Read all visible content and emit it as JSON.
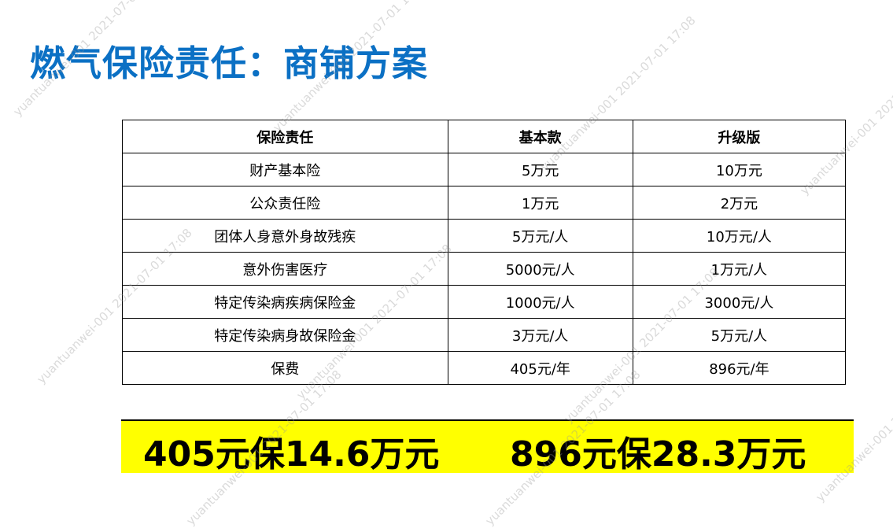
{
  "title": "燃气保险责任：商铺方案",
  "table": {
    "headers": [
      "保险责任",
      "基本款",
      "升级版"
    ],
    "rows": [
      [
        "财产基本险",
        "5万元",
        "10万元"
      ],
      [
        "公众责任险",
        "1万元",
        "2万元"
      ],
      [
        "团体人身意外身故残疾",
        "5万元/人",
        "10万元/人"
      ],
      [
        "意外伤害医疗",
        "5000元/人",
        "1万元/人"
      ],
      [
        "特定传染病疾病保险金",
        "1000元/人",
        "3000元/人"
      ],
      [
        "特定传染病身故保险金",
        "3万元/人",
        "5万元/人"
      ],
      [
        "保费",
        "405元/年",
        "896元/年"
      ]
    ]
  },
  "highlight": {
    "basic": "405元保14.6万元",
    "upgrade": "896元保28.3万元",
    "background_color": "#ffff00"
  },
  "watermark": "yuantuanwei-001  2021-07-01  17:08",
  "colors": {
    "title": "#0b70c4"
  }
}
